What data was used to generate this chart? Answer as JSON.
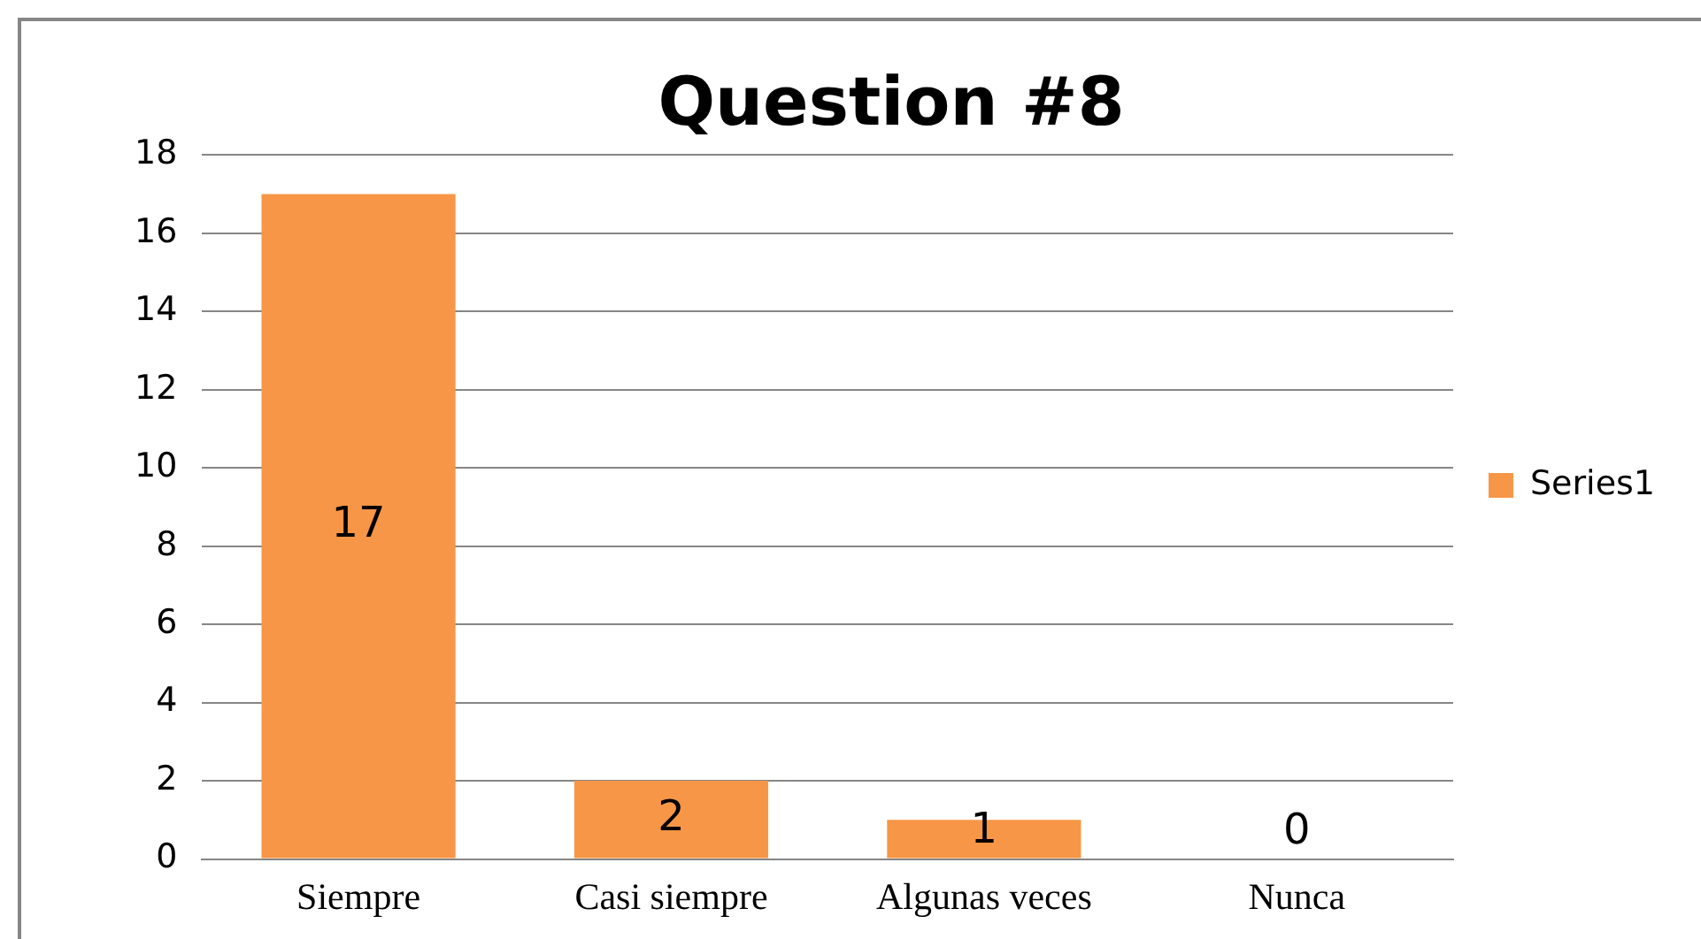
{
  "chart_data": {
    "type": "bar",
    "title": "Question #8",
    "categories": [
      "Siempre",
      "Casi siempre",
      "Algunas veces",
      "Nunca"
    ],
    "series": [
      {
        "name": "Series1",
        "color": "#f79646",
        "values": [
          17,
          2,
          1,
          0
        ]
      }
    ],
    "ylim": [
      0,
      18
    ],
    "yticks": [
      0,
      2,
      4,
      6,
      8,
      10,
      12,
      14,
      16,
      18
    ],
    "grid": "y",
    "legend": "right",
    "data_labels": true
  }
}
